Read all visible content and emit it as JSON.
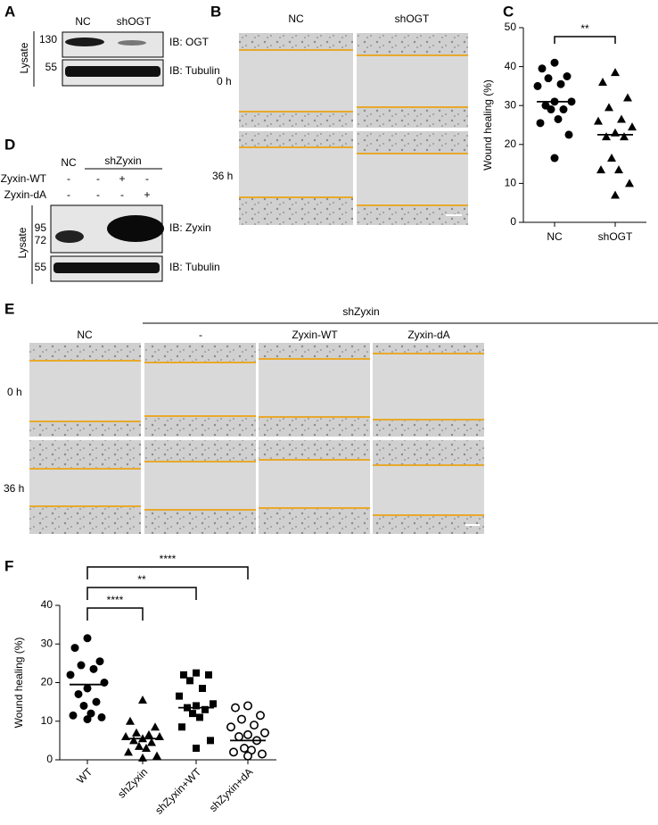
{
  "panel_labels": [
    "A",
    "B",
    "C",
    "D",
    "E",
    "F"
  ],
  "panel_a": {
    "header": [
      "NC",
      "shOGT"
    ],
    "mw": [
      "130",
      "55"
    ],
    "ib": [
      "IB: OGT",
      "IB: Tubulin"
    ],
    "side": "Lysate"
  },
  "panel_b": {
    "columns": [
      "NC",
      "shOGT"
    ],
    "rows": [
      "0 h",
      "36 h"
    ]
  },
  "panel_d": {
    "header_nc": "NC",
    "header_sh": "shZyxin",
    "rows": [
      {
        "label": "Zyxin-WT",
        "marks": [
          "-",
          "-",
          "+",
          "-"
        ]
      },
      {
        "label": "Zyxin-dA",
        "marks": [
          "-",
          "-",
          "-",
          "+"
        ]
      }
    ],
    "mw": [
      "95",
      "72",
      "55"
    ],
    "ib": [
      "IB: Zyxin",
      "IB: Tubulin"
    ],
    "side": "Lysate"
  },
  "panel_e": {
    "group": "shZyxin",
    "columns": [
      "NC",
      "-",
      "Zyxin-WT",
      "Zyxin-dA"
    ],
    "rows": [
      "0 h",
      "36 h"
    ]
  },
  "chart_data": [
    {
      "type": "strip",
      "ylabel": "Wound healing (%)",
      "categories": [
        "NC",
        "shOGT"
      ],
      "ylim": [
        0,
        50
      ],
      "yticks": [
        0,
        10,
        20,
        30,
        40,
        50
      ],
      "series": [
        {
          "marker": "circle",
          "color": "#000000",
          "values": [
            41,
            39.5,
            37.5,
            37,
            35.5,
            35,
            31,
            31,
            30,
            29,
            29,
            26.5,
            25.5,
            22.5,
            16.5
          ],
          "center": 31
        },
        {
          "marker": "triangle",
          "color": "#000000",
          "values": [
            38.5,
            36,
            32,
            29.5,
            26.5,
            26,
            24.5,
            23,
            22,
            22,
            16.5,
            13.5,
            13.5,
            10,
            7
          ],
          "center": 22.5
        }
      ],
      "significance": [
        {
          "between": [
            0,
            1
          ],
          "label": "**"
        }
      ]
    },
    {
      "type": "strip",
      "ylabel": "Wound healing (%)",
      "categories": [
        "WT",
        "shZyxin",
        "shZyxin+WT",
        "shZyxin+dA"
      ],
      "ylim": [
        0,
        40
      ],
      "yticks": [
        0,
        10,
        20,
        30,
        40
      ],
      "series": [
        {
          "marker": "circle",
          "color": "#000000",
          "values": [
            31.5,
            29,
            25.5,
            24.5,
            23.5,
            22,
            20,
            18.5,
            17,
            15,
            14,
            12,
            11.5,
            11,
            10.5
          ],
          "center": 19.5
        },
        {
          "marker": "triangle",
          "color": "#000000",
          "values": [
            15.5,
            10,
            8.5,
            7,
            6.5,
            6,
            6,
            5.5,
            5,
            4.5,
            3.5,
            3,
            2,
            1,
            0.5
          ],
          "center": 5.5
        },
        {
          "marker": "square",
          "color": "#000000",
          "values": [
            22.5,
            22,
            22,
            20.5,
            18.5,
            16.5,
            14.5,
            14,
            13.5,
            13,
            12,
            11,
            8.5,
            5,
            3
          ],
          "center": 13.5
        },
        {
          "marker": "open-circle",
          "color": "#000000",
          "values": [
            14,
            13.5,
            11.5,
            10.5,
            9,
            8.5,
            7,
            6.5,
            6,
            5,
            3,
            2.5,
            2,
            1.5,
            1
          ],
          "center": 5
        }
      ],
      "significance": [
        {
          "between": [
            0,
            1
          ],
          "label": "****"
        },
        {
          "between": [
            0,
            2
          ],
          "label": "**"
        },
        {
          "between": [
            0,
            3
          ],
          "label": "****"
        }
      ]
    }
  ]
}
